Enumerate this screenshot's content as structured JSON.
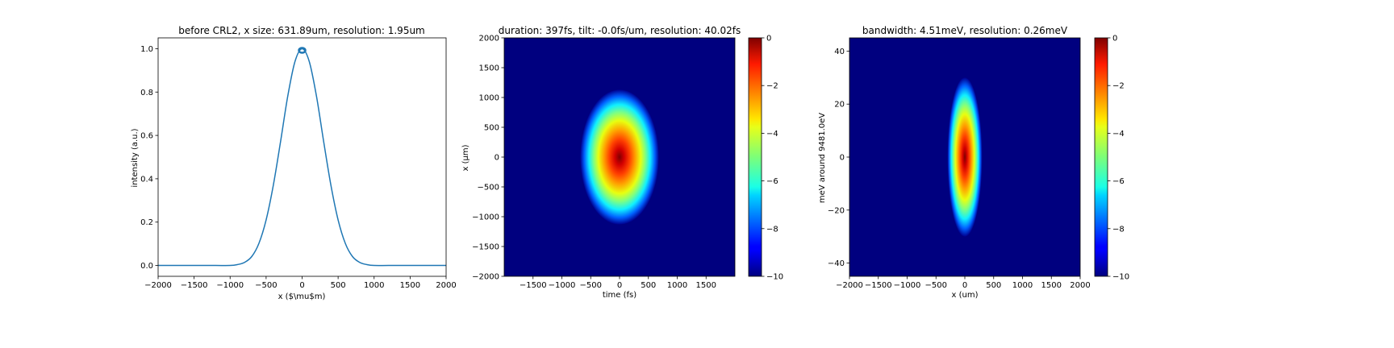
{
  "chart_data": [
    {
      "type": "line",
      "title": "before CRL2, x size: 631.89um, resolution: 1.95um",
      "xlabel": "x ($\\mu$m)",
      "ylabel": "intensity (a.u.)",
      "xlim": [
        -2000,
        2000
      ],
      "ylim": [
        -0.05,
        1.05
      ],
      "xticks": [
        -2000,
        -1500,
        -1000,
        -500,
        0,
        500,
        1000,
        1500,
        2000
      ],
      "yticks": [
        0.0,
        0.2,
        0.4,
        0.6,
        0.8,
        1.0
      ],
      "xtick_labels": [
        "−2000",
        "−1500",
        "−1000",
        "−500",
        "0",
        "500",
        "1000",
        "1500",
        "2000"
      ],
      "ytick_labels": [
        "0.0",
        "0.2",
        "0.4",
        "0.6",
        "0.8",
        "1.0"
      ],
      "series": [
        {
          "color": "#1f77b4",
          "x": [
            -2000,
            -1500,
            -1200,
            -1000,
            -900,
            -800,
            -700,
            -600,
            -500,
            -400,
            -300,
            -200,
            -100,
            0,
            100,
            200,
            300,
            400,
            500,
            600,
            700,
            800,
            900,
            1000,
            1200,
            1500,
            2000
          ],
          "y": [
            0.0,
            0.0,
            0.0,
            0.0,
            0.004,
            0.014,
            0.041,
            0.102,
            0.21,
            0.37,
            0.57,
            0.78,
            0.94,
            1.0,
            0.94,
            0.78,
            0.57,
            0.37,
            0.21,
            0.102,
            0.041,
            0.014,
            0.004,
            0.0,
            0.0,
            0.0,
            0.0
          ]
        }
      ]
    },
    {
      "type": "heatmap",
      "title": "duration: 397fs, tilt: -0.0fs/um, resolution: 40.02fs",
      "xlabel": "time (fs)",
      "ylabel": "x (μm)",
      "xlim": [
        -2000,
        2000
      ],
      "ylim": [
        -2000,
        2000
      ],
      "xticks": [
        -1500,
        -1000,
        -500,
        0,
        500,
        1000,
        1500
      ],
      "yticks": [
        -2000,
        -1500,
        -1000,
        -500,
        0,
        500,
        1000,
        1500,
        2000
      ],
      "xtick_labels": [
        "−1500",
        "−1000",
        "−500",
        "0",
        "500",
        "1000",
        "1500"
      ],
      "ytick_labels": [
        "−2000",
        "−1500",
        "−1000",
        "−500",
        "0",
        "500",
        "1000",
        "1500",
        "2000"
      ],
      "colormap": "jet",
      "colorbar": {
        "range": [
          -10,
          0
        ],
        "ticks": [
          0,
          -2,
          -4,
          -6,
          -8,
          -10
        ],
        "tick_labels": [
          "0",
          "−2",
          "−4",
          "−6",
          "−8",
          "−10"
        ]
      },
      "blob": {
        "center": [
          0,
          0
        ],
        "extent_x": 680,
        "extent_y": 1130
      }
    },
    {
      "type": "heatmap",
      "title": "bandwidth: 4.51meV, resolution: 0.26meV",
      "xlabel": "x (um)",
      "ylabel": "meV around 9481.0eV",
      "xlim": [
        -2000,
        2000
      ],
      "ylim": [
        -45,
        45
      ],
      "xticks": [
        -2000,
        -1500,
        -1000,
        -500,
        0,
        500,
        1000,
        1500,
        2000
      ],
      "yticks": [
        -40,
        -20,
        0,
        20,
        40
      ],
      "xtick_labels": [
        "−2000",
        "−1500",
        "−1000",
        "−500",
        "0",
        "500",
        "1000",
        "1500",
        "2000"
      ],
      "ytick_labels": [
        "−40",
        "−20",
        "0",
        "20",
        "40"
      ],
      "colormap": "jet",
      "colorbar": {
        "range": [
          -10,
          0
        ],
        "ticks": [
          0,
          -2,
          -4,
          -6,
          -8,
          -10
        ],
        "tick_labels": [
          "0",
          "−2",
          "−4",
          "−6",
          "−8",
          "−10"
        ]
      },
      "blob": {
        "center": [
          0,
          0
        ],
        "extent_x": 300,
        "extent_y": 30
      }
    }
  ]
}
